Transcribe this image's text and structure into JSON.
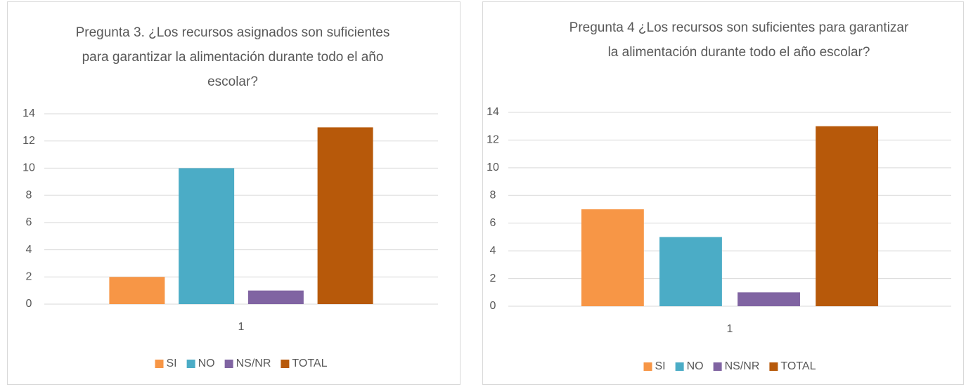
{
  "chart_data": [
    {
      "type": "bar",
      "title": "Pregunta 3. ¿Los recursos asignados son suficientes para garantizar la alimentación durante todo el año escolar?",
      "categories": [
        "1"
      ],
      "series": [
        {
          "name": "SI",
          "color": "#f79646",
          "values": [
            2
          ]
        },
        {
          "name": "NO",
          "color": "#4bacc6",
          "values": [
            10
          ]
        },
        {
          "name": "NS/NR",
          "color": "#8064a2",
          "values": [
            1
          ]
        },
        {
          "name": "TOTAL",
          "color": "#b7590a",
          "values": [
            13
          ]
        }
      ],
      "ylim": [
        0,
        14
      ],
      "yticks": [
        0,
        2,
        4,
        6,
        8,
        10,
        12,
        14
      ],
      "grid": true,
      "legend": "bottom"
    },
    {
      "type": "bar",
      "title": "Pregunta 4 ¿Los recursos son suficientes para garantizar la alimentación durante todo el año escolar?",
      "categories": [
        "1"
      ],
      "series": [
        {
          "name": "SI",
          "color": "#f79646",
          "values": [
            7
          ]
        },
        {
          "name": "NO",
          "color": "#4bacc6",
          "values": [
            5
          ]
        },
        {
          "name": "NS/NR",
          "color": "#8064a2",
          "values": [
            1
          ]
        },
        {
          "name": "TOTAL",
          "color": "#b7590a",
          "values": [
            13
          ]
        }
      ],
      "ylim": [
        0,
        14
      ],
      "yticks": [
        0,
        2,
        4,
        6,
        8,
        10,
        12,
        14
      ],
      "grid": true,
      "legend": "bottom"
    }
  ]
}
